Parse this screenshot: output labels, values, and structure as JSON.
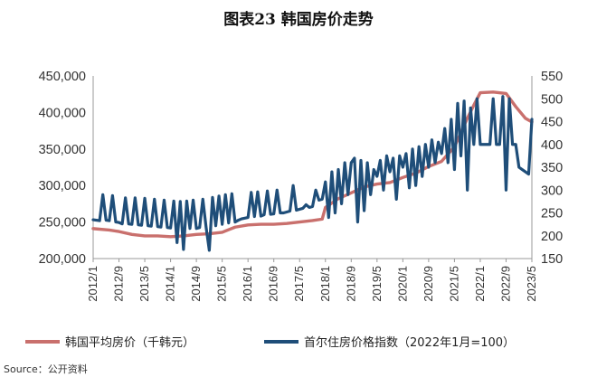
{
  "chart_data": {
    "type": "line",
    "title": "图表23 韩国房价走势",
    "source": "Source：公开资料",
    "left_axis": {
      "ylim": [
        200000,
        450000
      ],
      "ticks": [
        "200,000",
        "250,000",
        "300,000",
        "350,000",
        "400,000",
        "450,000"
      ]
    },
    "right_axis": {
      "ylim": [
        150,
        550
      ],
      "ticks": [
        "150",
        "200",
        "250",
        "300",
        "350",
        "400",
        "450",
        "500",
        "550"
      ]
    },
    "x_range": [
      "2012/1",
      "2023/5"
    ],
    "x_ticks": [
      "2012/1",
      "2012/9",
      "2013/5",
      "2014/1",
      "2014/9",
      "2015/5",
      "2016/1",
      "2016/9",
      "2017/5",
      "2018/1",
      "2018/9",
      "2019/5",
      "2020/1",
      "2020/9",
      "2021/5",
      "2022/1",
      "2022/9",
      "2023/5"
    ],
    "grid": false,
    "legend_position": "bottom",
    "series": [
      {
        "name": "韩国平均房价（千韩元）",
        "axis": "left",
        "color": "#c9706d",
        "points": [
          [
            "2012/1",
            241000
          ],
          [
            "2012/6",
            239000
          ],
          [
            "2012/9",
            237000
          ],
          [
            "2013/1",
            233000
          ],
          [
            "2013/5",
            231000
          ],
          [
            "2013/9",
            231000
          ],
          [
            "2014/1",
            230000
          ],
          [
            "2014/5",
            231000
          ],
          [
            "2014/9",
            233000
          ],
          [
            "2015/1",
            234000
          ],
          [
            "2015/5",
            236000
          ],
          [
            "2015/9",
            243000
          ],
          [
            "2016/1",
            246000
          ],
          [
            "2016/5",
            247000
          ],
          [
            "2016/9",
            247000
          ],
          [
            "2017/1",
            248000
          ],
          [
            "2017/5",
            250000
          ],
          [
            "2017/9",
            252000
          ],
          [
            "2017/12",
            254000
          ],
          [
            "2018/1",
            270000
          ],
          [
            "2018/5",
            282000
          ],
          [
            "2018/9",
            290000
          ],
          [
            "2019/1",
            298000
          ],
          [
            "2019/5",
            302000
          ],
          [
            "2019/9",
            304000
          ],
          [
            "2020/1",
            311000
          ],
          [
            "2020/5",
            317000
          ],
          [
            "2020/9",
            326000
          ],
          [
            "2021/1",
            333000
          ],
          [
            "2021/5",
            353000
          ],
          [
            "2021/9",
            392000
          ],
          [
            "2021/11",
            410000
          ],
          [
            "2022/1",
            427000
          ],
          [
            "2022/5",
            428000
          ],
          [
            "2022/9",
            426000
          ],
          [
            "2022/12",
            408000
          ],
          [
            "2023/3",
            392000
          ],
          [
            "2023/5",
            387000
          ]
        ]
      },
      {
        "name": "首尔住房价格指数（2022年1月=100）",
        "axis": "right",
        "color": "#1f4e79",
        "points": [
          [
            "2012/1",
            235
          ],
          [
            "2012/3",
            233
          ],
          [
            "2012/4",
            290
          ],
          [
            "2012/5",
            234
          ],
          [
            "2012/6",
            233
          ],
          [
            "2012/7",
            288
          ],
          [
            "2012/8",
            230
          ],
          [
            "2012/9",
            229
          ],
          [
            "2012/10",
            226
          ],
          [
            "2012/11",
            283
          ],
          [
            "2012/12",
            226
          ],
          [
            "2013/1",
            225
          ],
          [
            "2013/2",
            283
          ],
          [
            "2013/3",
            224
          ],
          [
            "2013/4",
            223
          ],
          [
            "2013/5",
            282
          ],
          [
            "2013/6",
            222
          ],
          [
            "2013/7",
            221
          ],
          [
            "2013/8",
            280
          ],
          [
            "2013/9",
            220
          ],
          [
            "2013/10",
            219
          ],
          [
            "2013/11",
            278
          ],
          [
            "2013/12",
            218
          ],
          [
            "2014/1",
            217
          ],
          [
            "2014/2",
            276
          ],
          [
            "2014/3",
            185
          ],
          [
            "2014/4",
            275
          ],
          [
            "2014/5",
            170
          ],
          [
            "2014/6",
            276
          ],
          [
            "2014/7",
            216
          ],
          [
            "2014/8",
            278
          ],
          [
            "2014/9",
            216
          ],
          [
            "2014/10",
            218
          ],
          [
            "2014/11",
            280
          ],
          [
            "2014/12",
            219
          ],
          [
            "2015/1",
            168
          ],
          [
            "2015/2",
            284
          ],
          [
            "2015/3",
            222
          ],
          [
            "2015/4",
            287
          ],
          [
            "2015/5",
            225
          ],
          [
            "2015/6",
            290
          ],
          [
            "2015/7",
            228
          ],
          [
            "2015/8",
            292
          ],
          [
            "2015/9",
            230
          ],
          [
            "2015/10",
            234
          ],
          [
            "2015/11",
            237
          ],
          [
            "2016/1",
            240
          ],
          [
            "2016/2",
            295
          ],
          [
            "2016/3",
            242
          ],
          [
            "2016/4",
            296
          ],
          [
            "2016/5",
            243
          ],
          [
            "2016/6",
            246
          ],
          [
            "2016/7",
            298
          ],
          [
            "2016/8",
            247
          ],
          [
            "2016/9",
            248
          ],
          [
            "2016/10",
            300
          ],
          [
            "2016/11",
            250
          ],
          [
            "2016/12",
            250
          ],
          [
            "2017/1",
            252
          ],
          [
            "2017/2",
            254
          ],
          [
            "2017/3",
            310
          ],
          [
            "2017/4",
            256
          ],
          [
            "2017/5",
            258
          ],
          [
            "2017/6",
            260
          ],
          [
            "2017/7",
            268
          ],
          [
            "2017/8",
            262
          ],
          [
            "2017/9",
            264
          ],
          [
            "2017/10",
            300
          ],
          [
            "2017/11",
            278
          ],
          [
            "2017/12",
            280
          ],
          [
            "2018/1",
            318
          ],
          [
            "2018/2",
            240
          ],
          [
            "2018/3",
            340
          ],
          [
            "2018/4",
            250
          ],
          [
            "2018/5",
            345
          ],
          [
            "2018/6",
            270
          ],
          [
            "2018/7",
            360
          ],
          [
            "2018/8",
            290
          ],
          [
            "2018/9",
            360
          ],
          [
            "2018/10",
            370
          ],
          [
            "2018/11",
            230
          ],
          [
            "2018/12",
            365
          ],
          [
            "2019/1",
            255
          ],
          [
            "2019/2",
            360
          ],
          [
            "2019/3",
            290
          ],
          [
            "2019/4",
            345
          ],
          [
            "2019/5",
            330
          ],
          [
            "2019/6",
            365
          ],
          [
            "2019/7",
            300
          ],
          [
            "2019/8",
            375
          ],
          [
            "2019/9",
            340
          ],
          [
            "2019/10",
            370
          ],
          [
            "2019/11",
            280
          ],
          [
            "2019/12",
            375
          ],
          [
            "2020/1",
            350
          ],
          [
            "2020/2",
            380
          ],
          [
            "2020/3",
            305
          ],
          [
            "2020/4",
            390
          ],
          [
            "2020/5",
            310
          ],
          [
            "2020/6",
            395
          ],
          [
            "2020/7",
            330
          ],
          [
            "2020/8",
            400
          ],
          [
            "2020/9",
            350
          ],
          [
            "2020/10",
            410
          ],
          [
            "2020/11",
            360
          ],
          [
            "2020/12",
            405
          ],
          [
            "2021/1",
            380
          ],
          [
            "2021/2",
            435
          ],
          [
            "2021/3",
            360
          ],
          [
            "2021/4",
            455
          ],
          [
            "2021/5",
            345
          ],
          [
            "2021/6",
            490
          ],
          [
            "2021/7",
            375
          ],
          [
            "2021/8",
            495
          ],
          [
            "2021/9",
            300
          ],
          [
            "2021/10",
            480
          ],
          [
            "2021/11",
            400
          ],
          [
            "2021/12",
            500
          ],
          [
            "2022/1",
            400
          ],
          [
            "2022/2",
            400
          ],
          [
            "2022/3",
            400
          ],
          [
            "2022/4",
            400
          ],
          [
            "2022/5",
            500
          ],
          [
            "2022/6",
            400
          ],
          [
            "2022/7",
            400
          ],
          [
            "2022/8",
            505
          ],
          [
            "2022/9",
            300
          ],
          [
            "2022/10",
            500
          ],
          [
            "2022/11",
            400
          ],
          [
            "2022/12",
            400
          ],
          [
            "2023/1",
            350
          ],
          [
            "2023/2",
            345
          ],
          [
            "2023/3",
            340
          ],
          [
            "2023/4",
            335
          ],
          [
            "2023/5",
            455
          ]
        ]
      }
    ]
  }
}
